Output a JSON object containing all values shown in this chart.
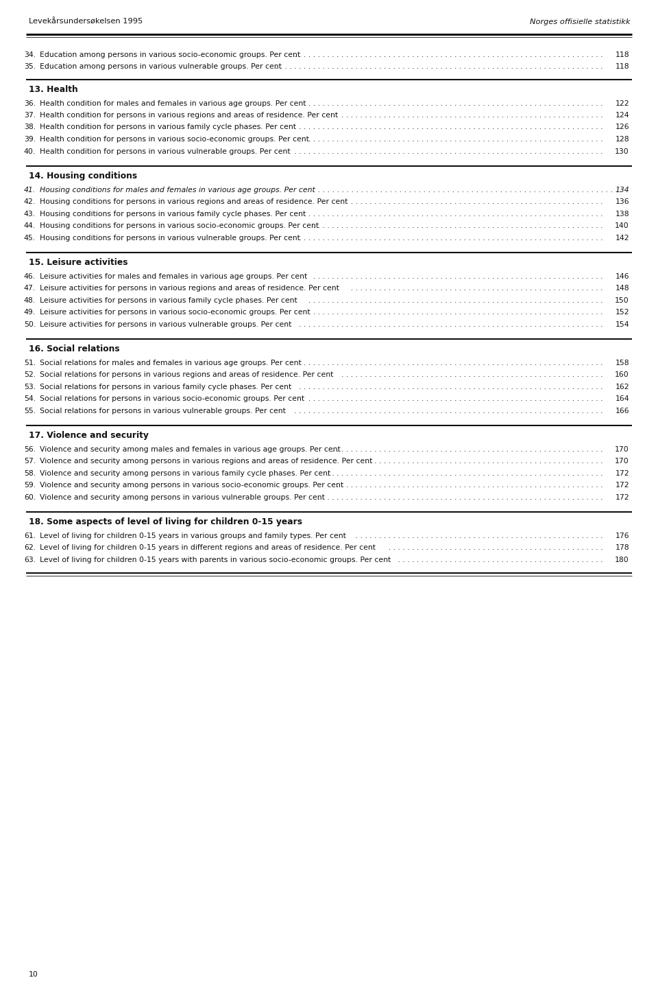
{
  "header_left": "Levekårsundersøkelsen 1995",
  "header_right": "Norges offisielle statistikk",
  "page_number": "10",
  "bg_color": "#f5f5f0",
  "text_color": "#1a1a1a",
  "font_size": 8.5,
  "header_font_size": 9.0,
  "section_font_size": 9.5,
  "preceding_items": [
    {
      "num": "34.",
      "text": "Education among persons in various socio-economic groups. Per cent",
      "page": "118",
      "italic": false
    },
    {
      "num": "35.",
      "text": "Education among persons in various vulnerable groups. Per cent",
      "page": "118",
      "italic": false
    }
  ],
  "sections": [
    {
      "number": "13.",
      "title": "Health",
      "title_italic": false,
      "items": [
        {
          "num": "36.",
          "text": "Health condition for males and females in various age groups. Per cent",
          "page": "122",
          "italic": false
        },
        {
          "num": "37.",
          "text": "Health condition for persons in various regions and areas of residence. Per cent",
          "page": "124",
          "italic": false
        },
        {
          "num": "38.",
          "text": "Health condition for persons in various family cycle phases. Per cent",
          "page": "126",
          "italic": false
        },
        {
          "num": "39.",
          "text": "Health condition for persons in various socio-economic groups. Per cent",
          "page": "128",
          "italic": false
        },
        {
          "num": "40.",
          "text": "Health condition for persons in various vulnerable groups. Per cent",
          "page": "130",
          "italic": false
        }
      ]
    },
    {
      "number": "14.",
      "title": "Housing conditions",
      "title_italic": false,
      "items": [
        {
          "num": "41.",
          "text": "Housing conditions for males and females in various age groups. Per cent",
          "page": "134",
          "italic": true
        },
        {
          "num": "42.",
          "text": "Housing conditions for persons in various regions and areas of residence. Per cent",
          "page": "136",
          "italic": false
        },
        {
          "num": "43.",
          "text": "Housing conditions for persons in various family cycle phases. Per cent",
          "page": "138",
          "italic": false
        },
        {
          "num": "44.",
          "text": "Housing conditions for persons in various socio-economic groups. Per cent",
          "page": "140",
          "italic": false
        },
        {
          "num": "45.",
          "text": "Housing conditions for persons in various vulnerable groups. Per cent",
          "page": "142",
          "italic": false
        }
      ]
    },
    {
      "number": "15.",
      "title": "Leisure activities",
      "title_italic": false,
      "items": [
        {
          "num": "46.",
          "text": "Leisure activities for males and females in various age groups. Per cent",
          "page": "146",
          "italic": false
        },
        {
          "num": "47.",
          "text": "Leisure activities for persons in various regions and areas of residence. Per cent",
          "page": "148",
          "italic": false
        },
        {
          "num": "48.",
          "text": "Leisure activities for persons in various family cycle phases. Per cent",
          "page": "150",
          "italic": false
        },
        {
          "num": "49.",
          "text": "Leisure activities for persons in various socio-economic groups. Per cent",
          "page": "152",
          "italic": false
        },
        {
          "num": "50.",
          "text": "Leisure activities for persons in various vulnerable groups. Per cent",
          "page": "154",
          "italic": false
        }
      ]
    },
    {
      "number": "16.",
      "title": "Social relations",
      "title_italic": false,
      "items": [
        {
          "num": "51.",
          "text": "Social relations for males and females in various age groups. Per cent",
          "page": "158",
          "italic": false
        },
        {
          "num": "52.",
          "text": "Social relations for persons in various regions and areas of residence. Per cent",
          "page": "160",
          "italic": false
        },
        {
          "num": "53.",
          "text": "Social relations for persons in various family cycle phases. Per cent",
          "page": "162",
          "italic": false
        },
        {
          "num": "54.",
          "text": "Social relations for persons in various socio-economic groups. Per cent",
          "page": "164",
          "italic": false
        },
        {
          "num": "55.",
          "text": "Social relations for persons in various vulnerable groups. Per cent",
          "page": "166",
          "italic": false
        }
      ]
    },
    {
      "number": "17.",
      "title": "Violence and security",
      "title_italic": false,
      "items": [
        {
          "num": "56.",
          "text": "Violence and security among males and females in various age groups. Per cent",
          "page": "170",
          "italic": false
        },
        {
          "num": "57.",
          "text": "Violence and security among persons in various regions and areas of residence. Per cent",
          "page": "170",
          "italic": false
        },
        {
          "num": "58.",
          "text": "Violence and security among persons in various family cycle phases. Per cent",
          "page": "172",
          "italic": false
        },
        {
          "num": "59.",
          "text": "Violence and security among persons in various socio-economic groups. Per cent",
          "page": "172",
          "italic": false
        },
        {
          "num": "60.",
          "text": "Violence and security among persons in various vulnerable groups. Per cent",
          "page": "172",
          "italic": false
        }
      ]
    },
    {
      "number": "18.",
      "title": "Some aspects of level of living for children 0-15 years",
      "title_italic": false,
      "items": [
        {
          "num": "61.",
          "text": "Level of living for children 0-15 years in various groups and family types. Per cent",
          "page": "176",
          "italic": false
        },
        {
          "num": "62.",
          "text": "Level of living for children 0-15 years in different regions and areas of residence. Per cent",
          "page": "178",
          "italic": false
        },
        {
          "num": "63.",
          "text": "Level of living for children 0-15 years with parents in various socio-economic groups. Per cent",
          "page": "180",
          "italic": false
        }
      ]
    }
  ]
}
